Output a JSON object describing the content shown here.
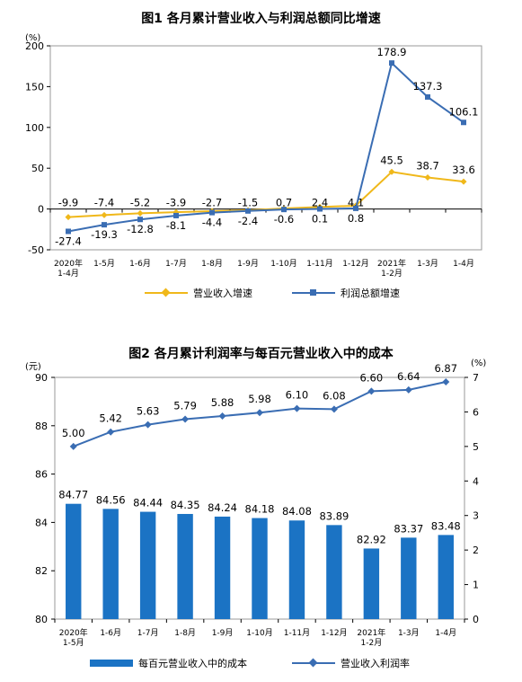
{
  "chart_data": [
    {
      "type": "line",
      "title": "图1  各月累计营业收入与利润总额同比增速",
      "unit_label": "(%)",
      "categories": [
        "2020年\n1-4月",
        "1-5月",
        "1-6月",
        "1-7月",
        "1-8月",
        "1-9月",
        "1-10月",
        "1-11月",
        "1-12月",
        "2021年\n1-2月",
        "1-3月",
        "1-4月"
      ],
      "y_ticks": [
        "200",
        "150",
        "100",
        "50",
        "0",
        "-50"
      ],
      "ylim": [
        -50,
        200
      ],
      "grid": false,
      "legend_position": "bottom",
      "series": [
        {
          "name": "营业收入增速",
          "marker": "diamond",
          "color": "#F0B81A",
          "values": [
            -9.9,
            -7.4,
            -5.2,
            -3.9,
            -2.7,
            -1.5,
            0.7,
            2.4,
            4.1,
            45.5,
            38.7,
            33.6
          ],
          "labels": [
            "-9.9",
            "-7.4",
            "-5.2",
            "-3.9",
            "-2.7",
            "-1.5",
            "0.7",
            "2.4",
            "4.1",
            "45.5",
            "38.7",
            "33.6"
          ]
        },
        {
          "name": "利润总额增速",
          "marker": "square",
          "color": "#3A6DB3",
          "values": [
            -27.4,
            -19.3,
            -12.8,
            -8.1,
            -4.4,
            -2.4,
            -0.6,
            0.1,
            0.8,
            178.9,
            137.3,
            106.1
          ],
          "labels": [
            "-27.4",
            "-19.3",
            "-12.8",
            "-8.1",
            "-4.4",
            "-2.4",
            "-0.6",
            "0.1",
            "0.8",
            "178.9",
            "137.3",
            "106.1"
          ]
        }
      ]
    },
    {
      "type": "bar",
      "title": "图2  各月累计利润率与每百元营业收入中的成本",
      "left_unit_label": "(元)",
      "right_unit_label": "(%)",
      "categories": [
        "2020年\n1-5月",
        "1-6月",
        "1-7月",
        "1-8月",
        "1-9月",
        "1-10月",
        "1-11月",
        "1-12月",
        "2021年\n1-2月",
        "1-3月",
        "1-4月"
      ],
      "y_ticks": [
        "90",
        "88",
        "86",
        "84",
        "82",
        "80"
      ],
      "ylim": [
        80,
        90
      ],
      "y2_ticks": [
        "7",
        "6",
        "5",
        "4",
        "3",
        "2",
        "1",
        "0"
      ],
      "y2lim": [
        0,
        7
      ],
      "grid": false,
      "legend_position": "bottom",
      "series": [
        {
          "name": "每百元营业收入中的成本",
          "kind": "bar",
          "axis": "left",
          "color": "#1B73C4",
          "values": [
            84.77,
            84.56,
            84.44,
            84.35,
            84.24,
            84.18,
            84.08,
            83.89,
            82.92,
            83.37,
            83.48
          ],
          "labels": [
            "84.77",
            "84.56",
            "84.44",
            "84.35",
            "84.24",
            "84.18",
            "84.08",
            "83.89",
            "82.92",
            "83.37",
            "83.48"
          ]
        },
        {
          "name": "营业收入利润率",
          "kind": "line",
          "axis": "right",
          "marker": "diamond",
          "color": "#3A6DB3",
          "values": [
            5.0,
            5.42,
            5.63,
            5.79,
            5.88,
            5.98,
            6.1,
            6.08,
            6.6,
            6.64,
            6.87
          ],
          "labels": [
            "5.00",
            "5.42",
            "5.63",
            "5.79",
            "5.88",
            "5.98",
            "6.10",
            "6.08",
            "6.60",
            "6.64",
            "6.87"
          ]
        }
      ]
    }
  ]
}
